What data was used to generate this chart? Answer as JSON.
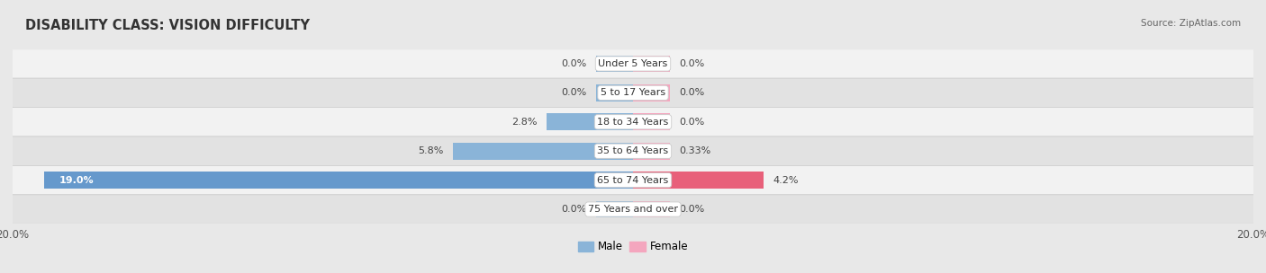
{
  "title": "DISABILITY CLASS: VISION DIFFICULTY",
  "source": "Source: ZipAtlas.com",
  "categories": [
    "Under 5 Years",
    "5 to 17 Years",
    "18 to 34 Years",
    "35 to 64 Years",
    "65 to 74 Years",
    "75 Years and over"
  ],
  "male_values": [
    0.0,
    0.0,
    2.8,
    5.8,
    19.0,
    0.0
  ],
  "female_values": [
    0.0,
    0.0,
    0.0,
    0.33,
    4.2,
    0.0
  ],
  "male_color": "#8ab4d8",
  "female_color": "#f4a6be",
  "male_color_strong": "#6699cc",
  "female_color_strong": "#e8607a",
  "axis_limit": 20.0,
  "bar_height": 0.58,
  "min_bar_width": 1.2,
  "background_color": "#e8e8e8",
  "row_light": "#f2f2f2",
  "row_dark": "#e2e2e2",
  "title_fontsize": 10.5,
  "label_fontsize": 8.0,
  "tick_fontsize": 8.5,
  "source_fontsize": 7.5
}
